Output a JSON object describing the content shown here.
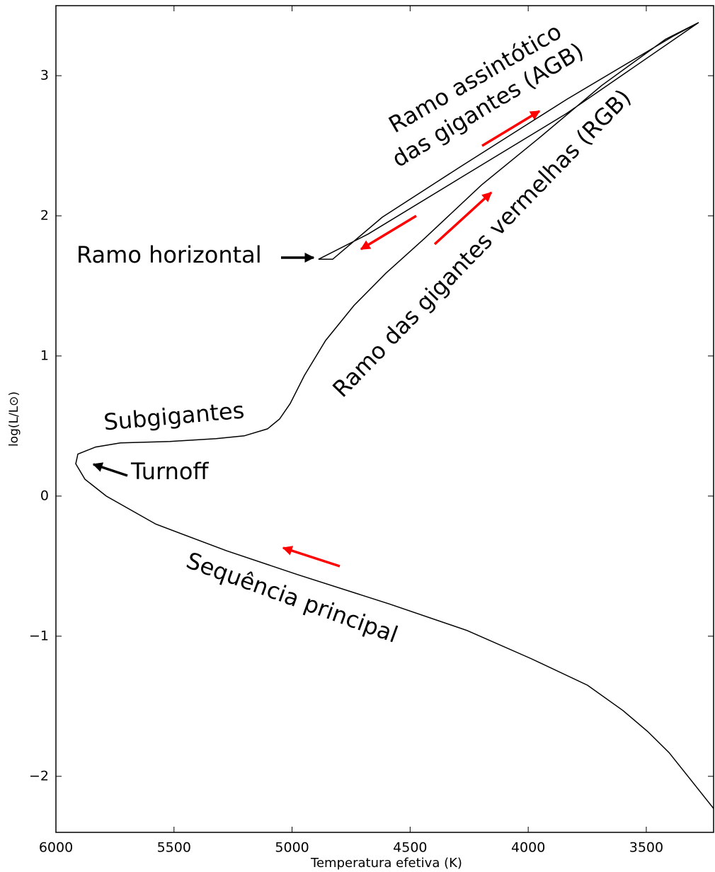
{
  "chart_data": {
    "type": "line",
    "xlabel": "Temperatura efetiva (K)",
    "ylabel": "log(L/L⊙)",
    "x": [
      3215,
      3314,
      3404,
      3494,
      3599,
      3749,
      3988,
      4258,
      4588,
      4978,
      5278,
      5577,
      5787,
      5877,
      5916,
      5907,
      5832,
      5727,
      5517,
      5322,
      5203,
      5104,
      5053,
      5008,
      4948,
      4858,
      4738,
      4603,
      4438,
      4198,
      3958,
      3689,
      3419,
      3278,
      3389,
      3838,
      4288,
      4618,
      4828,
      4888,
      4678,
      4288,
      3838,
      3278
    ],
    "values": [
      -2.23,
      -2.02,
      -1.83,
      -1.68,
      -1.53,
      -1.35,
      -1.16,
      -0.96,
      -0.77,
      -0.56,
      -0.39,
      -0.2,
      0,
      0.12,
      0.23,
      0.3,
      0.35,
      0.38,
      0.39,
      0.41,
      0.43,
      0.48,
      0.55,
      0.66,
      0.86,
      1.11,
      1.36,
      1.59,
      1.84,
      2.22,
      2.55,
      2.93,
      3.26,
      3.38,
      3.28,
      2.83,
      2.35,
      1.99,
      1.69,
      1.69,
      1.87,
      2.27,
      2.73,
      3.38
    ],
    "color": "#000000",
    "xlim": [
      6000,
      3215
    ],
    "ylim": [
      -2.4,
      3.5
    ],
    "xticks": [
      6000,
      5500,
      5000,
      4500,
      4000,
      3500
    ],
    "yticks": [
      {
        "value": -2,
        "label": "−2"
      },
      {
        "value": -1,
        "label": "−1"
      },
      0,
      1,
      2,
      3
    ],
    "annotations": [
      "Ramo assintótico",
      "das gigantes (AGB)",
      "Ramo das gigantes vermelhas (RGB)",
      "Ramo horizontal",
      "Subgigantes",
      "Turnoff",
      "Sequência principal"
    ]
  }
}
